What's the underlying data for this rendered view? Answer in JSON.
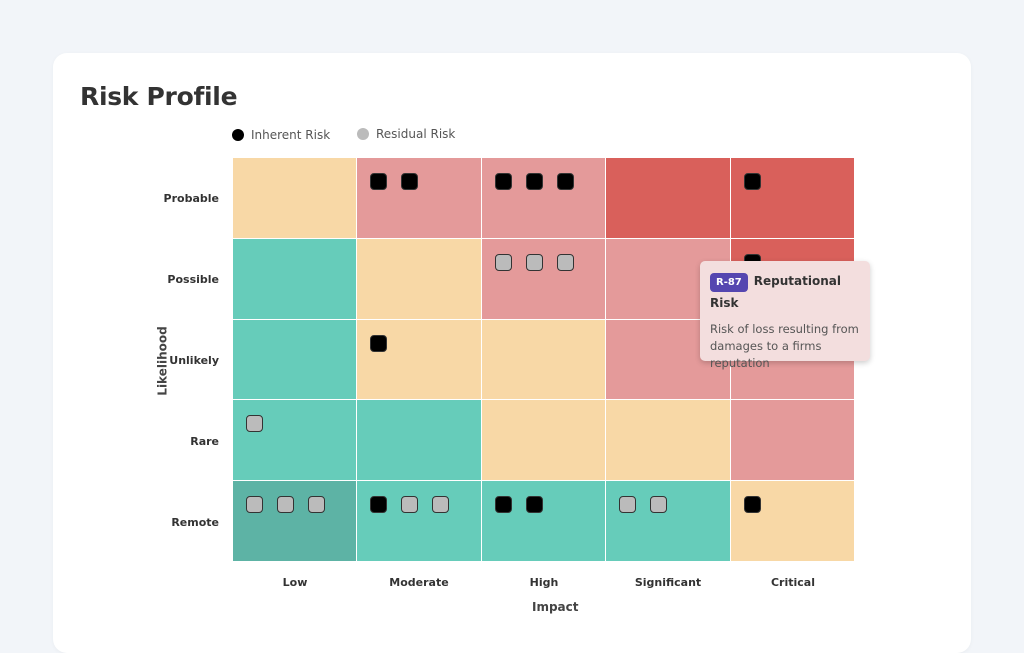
{
  "chart_data": {
    "type": "heatmap",
    "title": "Risk Profile",
    "xlabel": "Impact",
    "ylabel": "Likelihood",
    "x_categories": [
      "Low",
      "Moderate",
      "High",
      "Significant",
      "Critical"
    ],
    "y_categories": [
      "Probable",
      "Possible",
      "Unlikely",
      "Rare",
      "Remote"
    ],
    "legend": [
      {
        "name": "Inherent Risk",
        "color": "#000000"
      },
      {
        "name": "Residual Risk",
        "color": "#bbbbbb"
      }
    ],
    "legend_placement": "top",
    "colors": {
      "yellow": "#f8d8a6",
      "pink": "#e49a9a",
      "red": "#d9605b",
      "teal": "#66ccba",
      "darkteal": "#5db3a5"
    },
    "cell_colors": [
      [
        "yellow",
        "pink",
        "pink",
        "red",
        "red"
      ],
      [
        "teal",
        "yellow",
        "pink",
        "pink",
        "red"
      ],
      [
        "teal",
        "yellow",
        "yellow",
        "pink",
        "pink"
      ],
      [
        "teal",
        "teal",
        "yellow",
        "yellow",
        "pink"
      ],
      [
        "darkteal",
        "teal",
        "teal",
        "teal",
        "yellow"
      ]
    ],
    "markers": [
      [
        [],
        [
          "inherent",
          "inherent"
        ],
        [
          "inherent",
          "inherent",
          "inherent"
        ],
        [],
        [
          "inherent"
        ]
      ],
      [
        [],
        [],
        [
          "residual",
          "residual",
          "residual"
        ],
        [],
        [
          "inherent"
        ]
      ],
      [
        [],
        [
          "inherent"
        ],
        [],
        [],
        []
      ],
      [
        [
          "residual"
        ],
        [],
        [],
        [],
        []
      ],
      [
        [
          "residual",
          "residual",
          "residual"
        ],
        [
          "inherent",
          "residual",
          "residual"
        ],
        [
          "inherent",
          "inherent"
        ],
        [
          "residual",
          "residual"
        ],
        [
          "inherent"
        ]
      ]
    ]
  },
  "tooltip": {
    "badge": "R-87",
    "title": "Reputational Risk",
    "description": "Risk of loss resulting from damages to a firms reputation"
  }
}
